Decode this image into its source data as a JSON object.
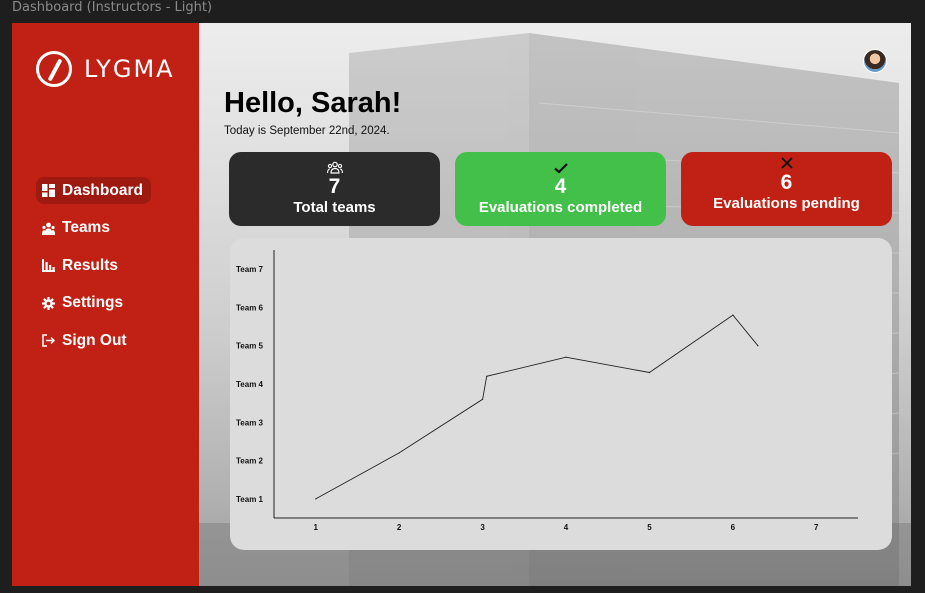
{
  "window": {
    "title": "Dashboard (Instructors - Light)"
  },
  "brand": {
    "name": "LYGMA",
    "accent": "#c12114"
  },
  "user": {
    "avatar_icon": "user-avatar"
  },
  "nav": {
    "items": [
      {
        "label": "Dashboard",
        "icon": "dashboard-icon",
        "active": true
      },
      {
        "label": "Teams",
        "icon": "teams-icon",
        "active": false
      },
      {
        "label": "Results",
        "icon": "results-icon",
        "active": false
      },
      {
        "label": "Settings",
        "icon": "gear-icon",
        "active": false
      },
      {
        "label": "Sign Out",
        "icon": "sign-out-icon",
        "active": false
      }
    ]
  },
  "header": {
    "greeting": "Hello, Sarah!",
    "date": "Today is September 22nd, 2024."
  },
  "stats": [
    {
      "value": "7",
      "label": "Total teams",
      "icon": "people-icon",
      "color": "#2b2b2b"
    },
    {
      "value": "4",
      "label": "Evaluations completed",
      "icon": "check-icon",
      "color": "#43c049"
    },
    {
      "value": "6",
      "label": "Evaluations pending",
      "icon": "x-icon",
      "color": "#c12114"
    }
  ],
  "chart_data": {
    "type": "line",
    "x": [
      1,
      2,
      3,
      4,
      5,
      6,
      7
    ],
    "y_categories": [
      "Team 1",
      "Team 2",
      "Team 3",
      "Team 4",
      "Team 5",
      "Team 6",
      "Team 7"
    ],
    "series": [
      {
        "points": [
          {
            "x": 1,
            "y": 1.0
          },
          {
            "x": 2,
            "y": 2.2
          },
          {
            "x": 3,
            "y": 3.6
          },
          {
            "x": 3.05,
            "y": 4.2
          },
          {
            "x": 4,
            "y": 4.7
          },
          {
            "x": 5,
            "y": 4.3
          },
          {
            "x": 6,
            "y": 5.8
          },
          {
            "x": 6.3,
            "y": 5.0
          }
        ]
      }
    ],
    "xlim": [
      0.5,
      7.5
    ],
    "ylim": [
      0.5,
      7.5
    ],
    "grid": false,
    "legend": "none"
  }
}
